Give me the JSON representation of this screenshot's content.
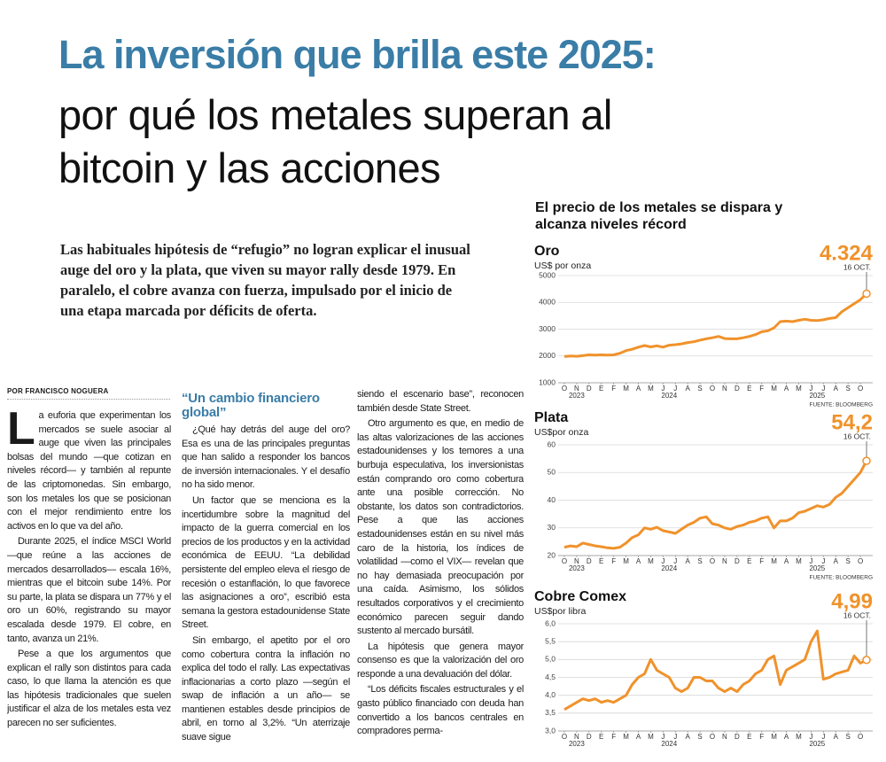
{
  "header": {
    "title": "La inversión que brilla este 2025:",
    "subtitle_lines": [
      "por qué los metales superan al",
      "bitcoin y las acciones"
    ]
  },
  "lede": "Las habituales hipótesis de “refugio” no logran explicar el inusual auge del oro y la plata, que viven su mayor rally desde 1979. En paralelo, el cobre avanza con fuerza, impulsado por el inicio de una etapa marcada por déficits de oferta.",
  "byline": "POR FRANCISCO NOGUERA",
  "article": {
    "columns": [
      {
        "paragraphs": [
          "La euforia que experimentan los mercados se suele asociar al auge que viven las principales bolsas del mundo —que cotizan en niveles récord— y también al repunte de las criptomonedas. Sin embargo, son los metales los que se posicionan con el mejor rendimiento entre los activos en lo que va del año.",
          "Durante 2025, el índice MSCI World —que reúne a las acciones de mercados desarrollados— escala 16%, mientras que el bitcoin sube 14%. Por su parte, la plata se dispara un 77% y el oro un 60%, registrando su mayor escalada desde 1979. El cobre, en tanto, avanza un 21%.",
          "Pese a que los argumentos que explican el rally son distintos para cada caso, lo que llama la atención es que las hipótesis tradicionales que suelen justificar el alza de los metales esta vez parecen no ser suficientes."
        ]
      },
      {
        "heading": "“Un cambio financiero global”",
        "paragraphs": [
          "¿Qué hay detrás del auge del oro? Esa es una de las principales preguntas que han salido a responder los bancos de inversión internacionales. Y el desafío no ha sido menor.",
          "Un factor que se menciona es la incertidumbre sobre la magnitud del impacto de la guerra comercial en los precios de los productos y en la actividad económica de EEUU. “La debilidad persistente del empleo eleva el riesgo de recesión o estanflación, lo que favorece las asignaciones a oro”, escribió esta semana la gestora estadounidense State Street.",
          "Sin embargo, el apetito por el oro como cobertura contra la inflación no explica del todo el rally. Las expectativas inflacionarias a corto plazo —según el swap de inflación a un año— se mantienen estables desde principios de abril, en torno al 3,2%. “Un aterrizaje suave sigue"
        ]
      },
      {
        "paragraphs": [
          "siendo el escenario base”, reconocen también desde State Street.",
          "Otro argumento es que, en medio de las altas valorizaciones de las acciones estadounidenses y los temores a una burbuja especulativa, los inversionistas están comprando oro como cobertura ante una posible corrección. No obstante, los datos son contradictorios. Pese a que las acciones estadounidenses están en su nivel más caro de la historia, los índices de volatilidad —como el VIX— revelan que no hay demasiada preocupación por una caída. Asimismo, los sólidos resultados corporativos y el crecimiento económico parecen seguir dando sustento al mercado bursátil.",
          "La hipótesis que genera mayor consenso es que la valorización del oro responde a una devaluación del dólar.",
          "“Los déficits fiscales estructurales y el gasto público financiado con deuda han convertido a los bancos centrales en compradores perma-"
        ]
      }
    ]
  },
  "charts_title": "El precio de los metales se dispara y alcanza niveles récord",
  "chart_data": [
    {
      "type": "line",
      "title": "Oro",
      "unit": "US$ por onza",
      "color": "#f0922b",
      "grid": true,
      "ylim": [
        1000,
        5000
      ],
      "yticks": [
        1000,
        2000,
        3000,
        4000,
        5000
      ],
      "xlim": [
        -0.5,
        25
      ],
      "xticks": [
        {
          "value": 0,
          "label": "O"
        },
        {
          "value": 1,
          "label": "N"
        },
        {
          "value": 2,
          "label": "D"
        },
        {
          "value": 3,
          "label": "E"
        },
        {
          "value": 4,
          "label": "F"
        },
        {
          "value": 5,
          "label": "M"
        },
        {
          "value": 6,
          "label": "A"
        },
        {
          "value": 7,
          "label": "M"
        },
        {
          "value": 8,
          "label": "J"
        },
        {
          "value": 9,
          "label": "J"
        },
        {
          "value": 10,
          "label": "A"
        },
        {
          "value": 11,
          "label": "S"
        },
        {
          "value": 12,
          "label": "O"
        },
        {
          "value": 13,
          "label": "N"
        },
        {
          "value": 14,
          "label": "D"
        },
        {
          "value": 15,
          "label": "E"
        },
        {
          "value": 16,
          "label": "F"
        },
        {
          "value": 17,
          "label": "M"
        },
        {
          "value": 18,
          "label": "A"
        },
        {
          "value": 19,
          "label": "M"
        },
        {
          "value": 20,
          "label": "J"
        },
        {
          "value": 21,
          "label": "J"
        },
        {
          "value": 22,
          "label": "A"
        },
        {
          "value": 23,
          "label": "S"
        },
        {
          "value": 24,
          "label": "O"
        }
      ],
      "year_labels": [
        {
          "value": 1,
          "label": "2023"
        },
        {
          "value": 8.5,
          "label": "2024"
        },
        {
          "value": 20.5,
          "label": "2025"
        }
      ],
      "x": [
        0,
        0.5,
        1,
        1.5,
        2,
        2.5,
        3,
        3.5,
        4,
        4.5,
        5,
        5.5,
        6,
        6.5,
        7,
        7.5,
        8,
        8.5,
        9,
        9.5,
        10,
        10.5,
        11,
        11.5,
        12,
        12.5,
        13,
        13.5,
        14,
        14.5,
        15,
        15.5,
        16,
        16.5,
        17,
        17.5,
        18,
        18.5,
        19,
        19.5,
        20,
        20.5,
        21,
        21.5,
        22,
        22.5,
        23,
        23.5,
        24,
        24.5
      ],
      "values": [
        1980,
        2000,
        1990,
        2010,
        2040,
        2030,
        2040,
        2030,
        2040,
        2100,
        2200,
        2250,
        2330,
        2390,
        2340,
        2380,
        2330,
        2400,
        2420,
        2450,
        2500,
        2530,
        2590,
        2640,
        2680,
        2730,
        2650,
        2640,
        2640,
        2680,
        2730,
        2800,
        2900,
        2940,
        3050,
        3280,
        3300,
        3280,
        3330,
        3370,
        3330,
        3320,
        3350,
        3400,
        3430,
        3650,
        3800,
        3950,
        4100,
        4324
      ],
      "highlight": {
        "x": 24.5,
        "value": 4324,
        "label": "4.324",
        "date": "16 OCT."
      },
      "source": "FUENTE: BLOOMBERG"
    },
    {
      "type": "line",
      "title": "Plata",
      "unit": "US$por onza",
      "color": "#f0922b",
      "grid": true,
      "ylim": [
        20,
        60
      ],
      "yticks": [
        20,
        30,
        40,
        50,
        60
      ],
      "xlim": [
        -0.5,
        25
      ],
      "xticks": [
        {
          "value": 0,
          "label": "O"
        },
        {
          "value": 1,
          "label": "N"
        },
        {
          "value": 2,
          "label": "D"
        },
        {
          "value": 3,
          "label": "E"
        },
        {
          "value": 4,
          "label": "F"
        },
        {
          "value": 5,
          "label": "M"
        },
        {
          "value": 6,
          "label": "A"
        },
        {
          "value": 7,
          "label": "M"
        },
        {
          "value": 8,
          "label": "J"
        },
        {
          "value": 9,
          "label": "J"
        },
        {
          "value": 10,
          "label": "A"
        },
        {
          "value": 11,
          "label": "S"
        },
        {
          "value": 12,
          "label": "O"
        },
        {
          "value": 13,
          "label": "N"
        },
        {
          "value": 14,
          "label": "D"
        },
        {
          "value": 15,
          "label": "E"
        },
        {
          "value": 16,
          "label": "F"
        },
        {
          "value": 17,
          "label": "M"
        },
        {
          "value": 18,
          "label": "A"
        },
        {
          "value": 19,
          "label": "M"
        },
        {
          "value": 20,
          "label": "J"
        },
        {
          "value": 21,
          "label": "J"
        },
        {
          "value": 22,
          "label": "A"
        },
        {
          "value": 23,
          "label": "S"
        },
        {
          "value": 24,
          "label": "O"
        }
      ],
      "year_labels": [
        {
          "value": 1,
          "label": "2023"
        },
        {
          "value": 8.5,
          "label": "2024"
        },
        {
          "value": 20.5,
          "label": "2025"
        }
      ],
      "x": [
        0,
        0.5,
        1,
        1.5,
        2,
        2.5,
        3,
        3.5,
        4,
        4.5,
        5,
        5.5,
        6,
        6.5,
        7,
        7.5,
        8,
        8.5,
        9,
        9.5,
        10,
        10.5,
        11,
        11.5,
        12,
        12.5,
        13,
        13.5,
        14,
        14.5,
        15,
        15.5,
        16,
        16.5,
        17,
        17.5,
        18,
        18.5,
        19,
        19.5,
        20,
        20.5,
        21,
        21.5,
        22,
        22.5,
        23,
        23.5,
        24,
        24.5
      ],
      "values": [
        23,
        23.5,
        23.2,
        24.5,
        24,
        23.5,
        23.2,
        22.8,
        22.6,
        23,
        24.5,
        26.5,
        27.5,
        30,
        29.5,
        30.2,
        29,
        28.5,
        28,
        29.5,
        31,
        32,
        33.5,
        34,
        31.5,
        31,
        30,
        29.5,
        30.5,
        31,
        32,
        32.5,
        33.5,
        34,
        30,
        32.5,
        32.5,
        33.5,
        35.5,
        36,
        37,
        38,
        37.5,
        38.5,
        41,
        42.5,
        45,
        47.5,
        50,
        54.2
      ],
      "highlight": {
        "x": 24.5,
        "value": 54.2,
        "label": "54,2",
        "date": "16 OCT."
      },
      "source": "FUENTE: BLOOMBERG"
    },
    {
      "type": "line",
      "title": "Cobre Comex",
      "unit": "US$por libra",
      "color": "#f0922b",
      "grid": true,
      "ylim": [
        3,
        6
      ],
      "yticks": [
        {
          "value": 3,
          "label": "3,0"
        },
        {
          "value": 3.5,
          "label": "3,5"
        },
        {
          "value": 4,
          "label": "4,0"
        },
        {
          "value": 4.5,
          "label": "4,5"
        },
        {
          "value": 5,
          "label": "5,0"
        },
        {
          "value": 5.5,
          "label": "5,5"
        },
        {
          "value": 6,
          "label": "6,0"
        }
      ],
      "xlim": [
        -0.5,
        25
      ],
      "xticks": [
        {
          "value": 0,
          "label": "O"
        },
        {
          "value": 1,
          "label": "N"
        },
        {
          "value": 2,
          "label": "D"
        },
        {
          "value": 3,
          "label": "E"
        },
        {
          "value": 4,
          "label": "F"
        },
        {
          "value": 5,
          "label": "M"
        },
        {
          "value": 6,
          "label": "A"
        },
        {
          "value": 7,
          "label": "M"
        },
        {
          "value": 8,
          "label": "J"
        },
        {
          "value": 9,
          "label": "J"
        },
        {
          "value": 10,
          "label": "A"
        },
        {
          "value": 11,
          "label": "S"
        },
        {
          "value": 12,
          "label": "O"
        },
        {
          "value": 13,
          "label": "N"
        },
        {
          "value": 14,
          "label": "D"
        },
        {
          "value": 15,
          "label": "E"
        },
        {
          "value": 16,
          "label": "F"
        },
        {
          "value": 17,
          "label": "M"
        },
        {
          "value": 18,
          "label": "A"
        },
        {
          "value": 19,
          "label": "M"
        },
        {
          "value": 20,
          "label": "J"
        },
        {
          "value": 21,
          "label": "J"
        },
        {
          "value": 22,
          "label": "A"
        },
        {
          "value": 23,
          "label": "S"
        },
        {
          "value": 24,
          "label": "O"
        }
      ],
      "year_labels": [
        {
          "value": 1,
          "label": "2023"
        },
        {
          "value": 8.5,
          "label": "2024"
        },
        {
          "value": 20.5,
          "label": "2025"
        }
      ],
      "x": [
        0,
        0.5,
        1,
        1.5,
        2,
        2.5,
        3,
        3.5,
        4,
        4.5,
        5,
        5.5,
        6,
        6.5,
        7,
        7.5,
        8,
        8.5,
        9,
        9.5,
        10,
        10.5,
        11,
        11.5,
        12,
        12.5,
        13,
        13.5,
        14,
        14.5,
        15,
        15.5,
        16,
        16.5,
        17,
        17.5,
        18,
        18.5,
        19,
        19.5,
        20,
        20.5,
        21,
        21.5,
        22,
        22.5,
        23,
        23.5,
        24,
        24.5
      ],
      "values": [
        3.6,
        3.7,
        3.8,
        3.9,
        3.85,
        3.9,
        3.8,
        3.85,
        3.8,
        3.9,
        4,
        4.3,
        4.5,
        4.6,
        5,
        4.7,
        4.6,
        4.5,
        4.2,
        4.1,
        4.2,
        4.5,
        4.5,
        4.4,
        4.4,
        4.2,
        4.1,
        4.2,
        4.1,
        4.3,
        4.4,
        4.6,
        4.7,
        5,
        5.1,
        4.3,
        4.7,
        4.8,
        4.9,
        5,
        5.5,
        5.8,
        4.45,
        4.5,
        4.6,
        4.65,
        4.7,
        5.1,
        4.9,
        4.99
      ],
      "highlight": {
        "x": 24.5,
        "value": 4.99,
        "label": "4,99",
        "date": "16 OCT."
      }
    }
  ]
}
